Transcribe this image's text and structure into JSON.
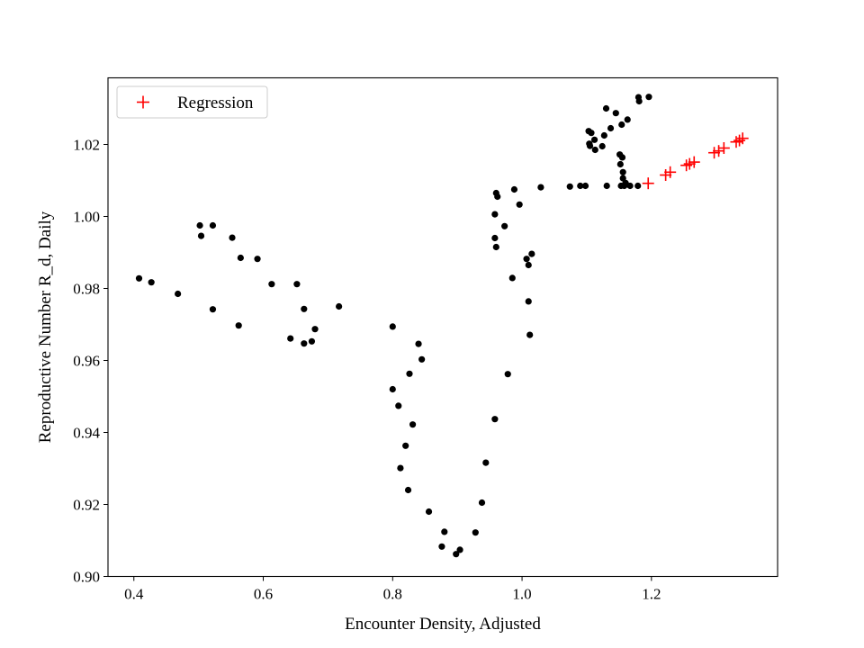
{
  "chart_data": {
    "type": "scatter",
    "title": "",
    "xlabel": "Encounter Density, Adjusted",
    "ylabel": "Reproductive Number R_d, Daily",
    "xlim": [
      0.36,
      1.395
    ],
    "ylim": [
      0.9,
      1.0385
    ],
    "xticks": [
      0.4,
      0.6,
      0.8,
      1.0,
      1.2
    ],
    "xtick_labels": [
      "0.4",
      "0.6",
      "0.8",
      "1.0",
      "1.2"
    ],
    "yticks": [
      0.9,
      0.92,
      0.94,
      0.96,
      0.98,
      1.0,
      1.02
    ],
    "ytick_labels": [
      "0.90",
      "0.92",
      "0.94",
      "0.96",
      "0.98",
      "1.00",
      "1.02"
    ],
    "grid": false,
    "legend_position": "top-left",
    "colors": {
      "observed": "#000000",
      "regression": "#ff0000"
    },
    "series": [
      {
        "marker": "dot",
        "color": "#000000",
        "x": [
          0.408,
          0.427,
          0.468,
          0.502,
          0.504,
          0.522,
          0.522,
          0.552,
          0.562,
          0.565,
          0.591,
          0.613,
          0.642,
          0.652,
          0.663,
          0.663,
          0.675,
          0.68,
          0.717,
          0.8,
          0.8,
          0.809,
          0.812,
          0.82,
          0.824,
          0.826,
          0.831,
          0.84,
          0.845,
          0.856,
          0.876,
          0.88,
          0.898,
          0.904,
          0.928,
          0.938,
          0.944,
          0.958,
          0.958,
          0.958,
          0.96,
          0.96,
          0.962,
          0.973,
          0.978,
          0.985,
          0.988,
          0.996,
          1.007,
          1.01,
          1.01,
          1.012,
          1.015,
          1.029,
          1.074,
          1.09,
          1.098,
          1.103,
          1.104,
          1.105,
          1.107,
          1.112,
          1.113,
          1.124,
          1.127,
          1.13,
          1.131,
          1.137,
          1.145,
          1.151,
          1.152,
          1.153,
          1.154,
          1.155,
          1.156,
          1.156,
          1.158,
          1.16,
          1.163,
          1.167,
          1.179,
          1.18,
          1.181,
          1.196
        ],
        "y": [
          0.9828,
          0.9817,
          0.9785,
          0.9975,
          0.9946,
          0.9975,
          0.9742,
          0.9941,
          0.9697,
          0.9885,
          0.9882,
          0.9812,
          0.9661,
          0.9812,
          0.9743,
          0.9647,
          0.9653,
          0.9687,
          0.975,
          0.9694,
          0.952,
          0.9474,
          0.9301,
          0.9363,
          0.924,
          0.9563,
          0.9422,
          0.9646,
          0.9603,
          0.918,
          0.9083,
          0.9124,
          0.9062,
          0.9074,
          0.9122,
          0.9205,
          0.9316,
          0.9437,
          1.0006,
          0.994,
          0.9915,
          1.0065,
          1.0055,
          0.9973,
          0.9562,
          0.9829,
          1.0075,
          1.0033,
          0.9882,
          0.9764,
          0.9865,
          0.9671,
          0.9896,
          1.0081,
          1.0083,
          1.0085,
          1.0085,
          1.0237,
          1.0202,
          1.0196,
          1.0232,
          1.0213,
          1.0185,
          1.0195,
          1.0225,
          1.03,
          1.0085,
          1.0245,
          1.0287,
          1.0172,
          1.0145,
          1.0085,
          1.0255,
          1.0164,
          1.0123,
          1.0106,
          1.0085,
          1.0093,
          1.0269,
          1.0085,
          1.0085,
          1.0331,
          1.032,
          1.0332
        ]
      },
      {
        "name": "Regression",
        "marker": "plus",
        "color": "#ff0000",
        "x": [
          1.195,
          1.222,
          1.229,
          1.254,
          1.259,
          1.266,
          1.297,
          1.304,
          1.312,
          1.331,
          1.336,
          1.341
        ],
        "y": [
          1.0092,
          1.0115,
          1.0123,
          1.0142,
          1.0146,
          1.0151,
          1.0177,
          1.0182,
          1.019,
          1.0207,
          1.0211,
          1.0217
        ]
      }
    ]
  }
}
